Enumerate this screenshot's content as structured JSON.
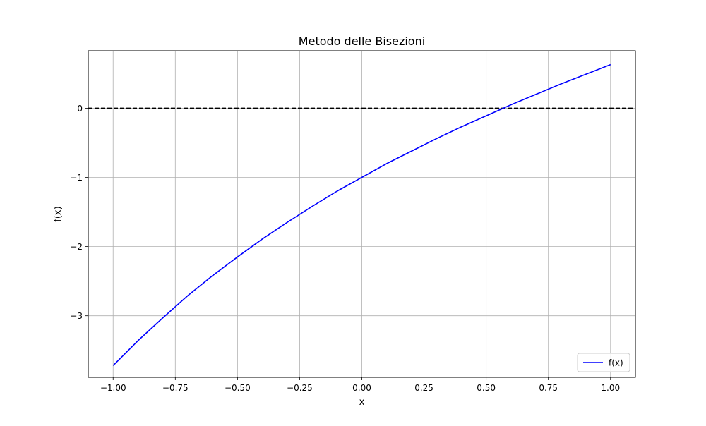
{
  "chart_data": {
    "type": "line",
    "title": "Metodo delle Bisezioni",
    "xlabel": "x",
    "ylabel": "f(x)",
    "xlim": [
      -1.1,
      1.1
    ],
    "ylim": [
      -3.89,
      0.83
    ],
    "xticks": [
      -1.0,
      -0.75,
      -0.5,
      -0.25,
      0.0,
      0.25,
      0.5,
      0.75,
      1.0
    ],
    "xtick_labels": [
      "−1.00",
      "−0.75",
      "−0.50",
      "−0.25",
      "0.00",
      "0.25",
      "0.50",
      "0.75",
      "1.00"
    ],
    "yticks": [
      0,
      -1,
      -2,
      -3
    ],
    "ytick_labels": [
      "0",
      "−1",
      "−2",
      "−3"
    ],
    "grid": true,
    "legend_position": "lower-right",
    "series": [
      {
        "name": "f(x)",
        "color": "#0000ff",
        "x": [
          -1.0,
          -0.9,
          -0.8,
          -0.7,
          -0.6,
          -0.5,
          -0.4,
          -0.3,
          -0.2,
          -0.1,
          0.0,
          0.1,
          0.2,
          0.3,
          0.4,
          0.5,
          0.6,
          0.7,
          0.8,
          0.9,
          1.0
        ],
        "y": [
          -3.72,
          -3.36,
          -3.03,
          -2.71,
          -2.42,
          -2.15,
          -1.89,
          -1.65,
          -1.42,
          -1.2,
          -1.0,
          -0.8,
          -0.62,
          -0.44,
          -0.27,
          -0.11,
          0.05,
          0.2,
          0.35,
          0.49,
          0.63
        ]
      }
    ],
    "reference_lines": [
      {
        "orientation": "horizontal",
        "y": 0,
        "style": "dashed",
        "color": "#000000"
      }
    ]
  }
}
